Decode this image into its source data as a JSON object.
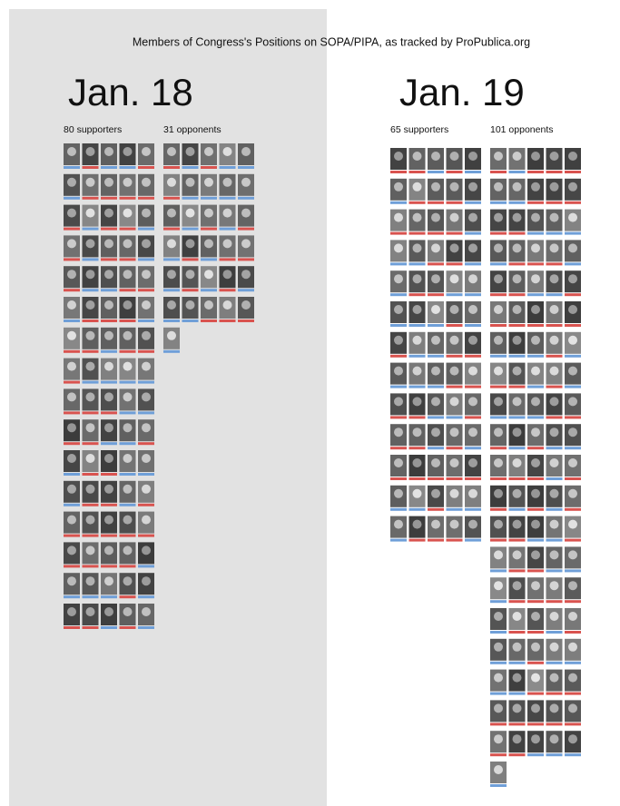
{
  "chart_data": {
    "type": "pictogram",
    "title": "Members of Congress's Positions on SOPA/PIPA, as tracked by ProPublica.org",
    "panels": [
      {
        "date": "Jan. 18",
        "values": [
          80,
          31
        ],
        "value_labels": [
          "80 supporters",
          "31 opponents"
        ],
        "background": "#e2e2e2"
      },
      {
        "date": "Jan. 19",
        "values": [
          65,
          101
        ],
        "value_labels": [
          "65 supporters",
          "101 opponents"
        ],
        "background": "#ffffff"
      }
    ],
    "party_colors": [
      "#d9534f",
      "#6f9fd8"
    ]
  }
}
